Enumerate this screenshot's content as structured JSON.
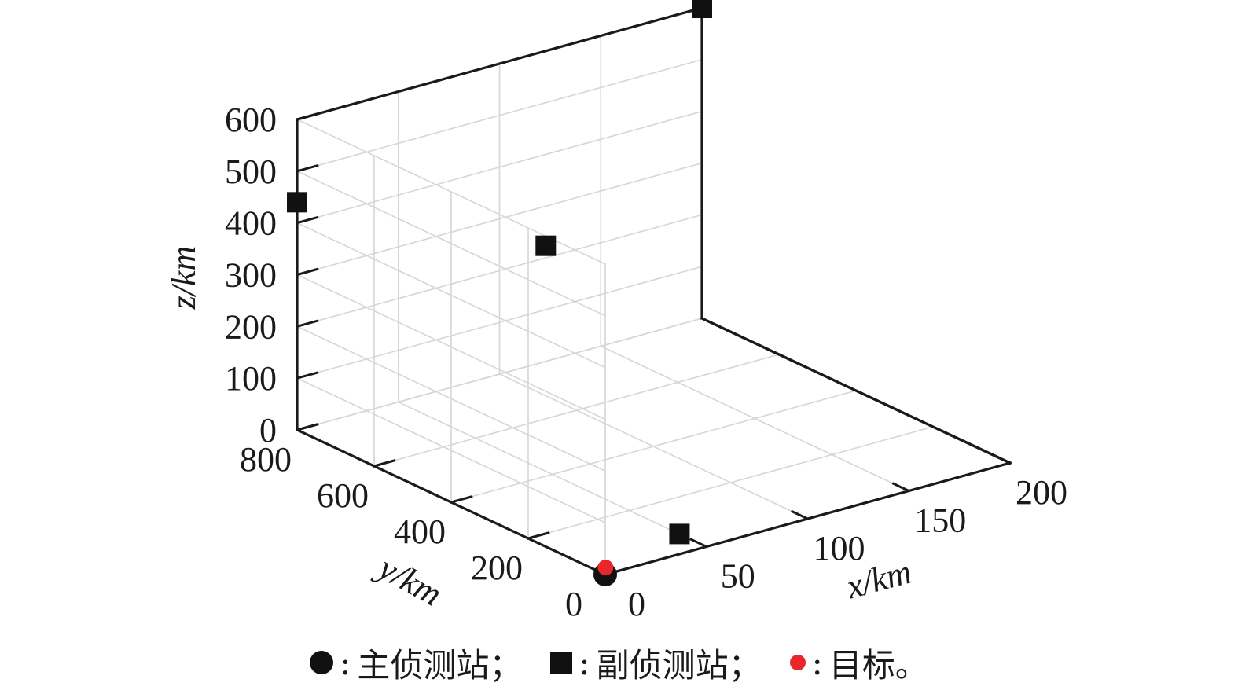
{
  "chart_data": {
    "type": "scatter",
    "dimensions": 3,
    "xlabel": "x/km",
    "ylabel": "y/km",
    "zlabel": "z/km",
    "xlim": [
      0,
      200
    ],
    "ylim": [
      0,
      800
    ],
    "zlim": [
      0,
      600
    ],
    "x_ticks": [
      "0",
      "50",
      "100",
      "150",
      "200"
    ],
    "y_ticks": [
      "0",
      "200",
      "400",
      "600",
      "800"
    ],
    "z_ticks": [
      "0",
      "100",
      "200",
      "300",
      "400",
      "500",
      "600"
    ],
    "grid": true,
    "series": [
      {
        "name": "主侦测站",
        "marker": "circle",
        "color": "#111111",
        "points": [
          {
            "x": 0,
            "y": 0,
            "z": 0
          }
        ]
      },
      {
        "name": "副侦测站",
        "marker": "square",
        "color": "#111111",
        "points": [
          {
            "x": 50,
            "y": 70,
            "z": 0
          },
          {
            "x": 100,
            "y": 680,
            "z": 290
          },
          {
            "x": 0,
            "y": 800,
            "z": 440
          },
          {
            "x": 200,
            "y": 800,
            "z": 600
          }
        ]
      },
      {
        "name": "目标",
        "marker": "dot",
        "color": "#e8262b",
        "points": [
          {
            "x": 3,
            "y": 15,
            "z": 5
          }
        ]
      }
    ]
  },
  "legend": {
    "items": [
      {
        "label": "主侦测站"
      },
      {
        "label": "副侦测站"
      },
      {
        "label": "目标"
      }
    ],
    "separator_1": "；",
    "separator_2": "；",
    "terminator": "。",
    "colon": ":"
  }
}
